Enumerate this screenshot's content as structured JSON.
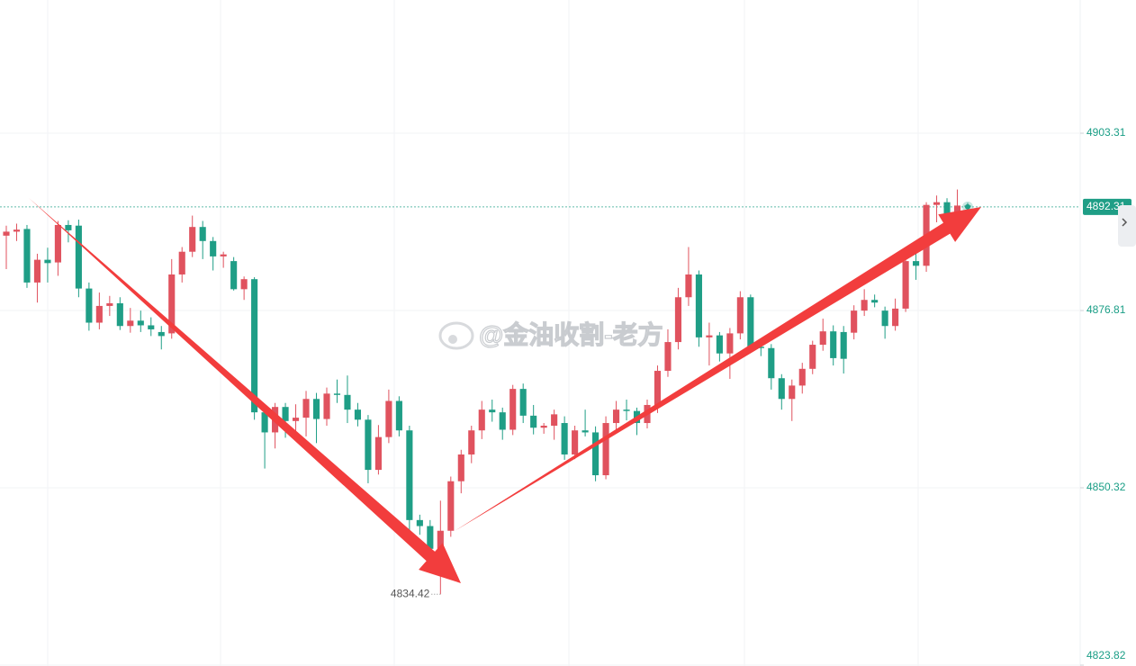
{
  "chart_data": {
    "type": "candlestick",
    "watermark": "@金油收割-老方",
    "up_color": "#e0525e",
    "down_color": "#1f9e86",
    "ylim": [
      4823.69,
      4923.22
    ],
    "yticks": [
      4903.31,
      4876.81,
      4850.32,
      4823.82
    ],
    "grid": true,
    "open": [
      4888.0,
      4888.6,
      4889.0,
      4881.0,
      4884.4,
      4884.0,
      4889.6,
      4889.5,
      4880.1,
      4875.0,
      4877.5,
      4877.9,
      4874.5,
      4875.3,
      4874.6,
      4873.6,
      4873.4,
      4882.2,
      4885.6,
      4889.3,
      4887.2,
      4884.9,
      4884.2,
      4880.0,
      4881.5,
      4861.6,
      4858.6,
      4862.4,
      4860.3,
      4860.8,
      4863.6,
      4860.6,
      4864.4,
      4864.2,
      4862.0,
      4860.5,
      4853.0,
      4857.9,
      4863.3,
      4858.9,
      4845.5,
      4844.6,
      4841.2,
      4843.9,
      4851.3,
      4855.3,
      4858.9,
      4862.0,
      4861.6,
      4859.0,
      4865.1,
      4861.1,
      4859.3,
      4859.6,
      4860.0,
      4855.3,
      4858.9,
      4858.6,
      4852.2,
      4860.0,
      4862.0,
      4861.8,
      4860.0,
      4862.7,
      4867.8,
      4872.1,
      4878.8,
      4882.2,
      4872.8,
      4873.1,
      4870.4,
      4873.4,
      4878.8,
      4871.4,
      4871.2,
      4866.7,
      4863.6,
      4865.6,
      4868.1,
      4871.7,
      4873.7,
      4873.6,
      4873.5,
      4876.8,
      4878.4,
      4876.8,
      4874.5,
      4877.1,
      4884.2,
      4883.5,
      4892.6,
      4893.0,
      4891.2,
      4892.5
    ],
    "high": [
      4889.5,
      4889.8,
      4889.6,
      4885.3,
      4886.2,
      4890.2,
      4890.3,
      4890.4,
      4881.0,
      4879.5,
      4879.0,
      4878.8,
      4877.2,
      4876.8,
      4875.8,
      4874.5,
      4884.5,
      4886.3,
      4891.0,
      4890.2,
      4887.8,
      4885.6,
      4884.8,
      4881.9,
      4881.8,
      4862.2,
      4863.0,
      4863.0,
      4862.8,
      4864.8,
      4864.5,
      4865.3,
      4866.5,
      4867.1,
      4863.0,
      4861.2,
      4859.7,
      4865.0,
      4864.0,
      4859.6,
      4846.3,
      4845.5,
      4848.4,
      4852.0,
      4856.0,
      4859.6,
      4863.3,
      4863.5,
      4862.3,
      4865.7,
      4865.9,
      4862.7,
      4860.0,
      4862.0,
      4861.0,
      4859.6,
      4862.0,
      4859.5,
      4861.0,
      4863.3,
      4863.5,
      4862.3,
      4863.5,
      4868.6,
      4874.0,
      4880.2,
      4886.3,
      4882.8,
      4875.0,
      4873.6,
      4874.2,
      4879.7,
      4879.2,
      4872.2,
      4871.8,
      4867.3,
      4866.5,
      4869.0,
      4872.3,
      4875.6,
      4874.6,
      4874.5,
      4877.6,
      4880.0,
      4879.2,
      4877.4,
      4878.6,
      4885.1,
      4885.6,
      4893.0,
      4894.0,
      4893.6,
      4894.9,
      4892.9
    ],
    "low": [
      4883.0,
      4887.2,
      4880.2,
      4878.0,
      4881.0,
      4882.0,
      4887.0,
      4878.8,
      4873.8,
      4874.0,
      4876.0,
      4873.9,
      4873.5,
      4873.6,
      4873.0,
      4871.0,
      4872.6,
      4881.0,
      4884.8,
      4884.5,
      4882.8,
      4883.2,
      4879.8,
      4878.4,
      4860.5,
      4853.2,
      4856.2,
      4857.8,
      4858.5,
      4858.0,
      4857.0,
      4859.6,
      4863.0,
      4860.0,
      4859.5,
      4851.0,
      4852.3,
      4857.0,
      4858.0,
      4844.0,
      4843.3,
      4840.2,
      4834.42,
      4843.0,
      4849.5,
      4854.0,
      4857.6,
      4860.2,
      4857.5,
      4858.2,
      4860.0,
      4858.3,
      4858.4,
      4857.5,
      4854.5,
      4854.6,
      4858.0,
      4851.3,
      4851.6,
      4858.5,
      4860.4,
      4858.2,
      4859.2,
      4861.5,
      4866.9,
      4871.0,
      4877.5,
      4871.4,
      4868.6,
      4869.2,
      4866.6,
      4872.5,
      4870.5,
      4870.0,
      4865.0,
      4862.0,
      4860.3,
      4864.4,
      4867.3,
      4870.8,
      4868.6,
      4867.4,
      4872.5,
      4876.0,
      4877.3,
      4872.6,
      4873.8,
      4876.6,
      4881.4,
      4882.6,
      4890.0,
      4890.6,
      4890.5,
      4891.6
    ],
    "close": [
      4888.6,
      4888.9,
      4881.0,
      4884.4,
      4883.9,
      4889.6,
      4888.8,
      4880.1,
      4875.0,
      4877.5,
      4877.9,
      4874.5,
      4875.3,
      4874.6,
      4874.0,
      4873.0,
      4882.2,
      4885.6,
      4889.3,
      4887.2,
      4884.9,
      4885.2,
      4880.0,
      4881.5,
      4861.6,
      4858.6,
      4862.4,
      4860.3,
      4860.8,
      4863.6,
      4860.6,
      4864.4,
      4864.2,
      4862.0,
      4860.5,
      4853.0,
      4857.9,
      4863.3,
      4858.9,
      4845.5,
      4844.6,
      4841.2,
      4843.9,
      4851.3,
      4855.3,
      4858.9,
      4862.0,
      4861.6,
      4859.0,
      4865.1,
      4861.1,
      4859.3,
      4859.6,
      4861.3,
      4855.3,
      4858.9,
      4858.6,
      4852.2,
      4860.0,
      4862.0,
      4861.8,
      4860.0,
      4862.7,
      4867.8,
      4872.1,
      4878.8,
      4882.2,
      4872.8,
      4873.1,
      4870.4,
      4873.4,
      4878.8,
      4871.4,
      4871.2,
      4866.7,
      4863.6,
      4865.6,
      4868.1,
      4871.7,
      4873.7,
      4869.7,
      4869.6,
      4876.8,
      4878.4,
      4878.0,
      4874.5,
      4877.1,
      4884.2,
      4883.5,
      4892.6,
      4893.0,
      4891.2,
      4892.5,
      4892.31
    ]
  }
}
